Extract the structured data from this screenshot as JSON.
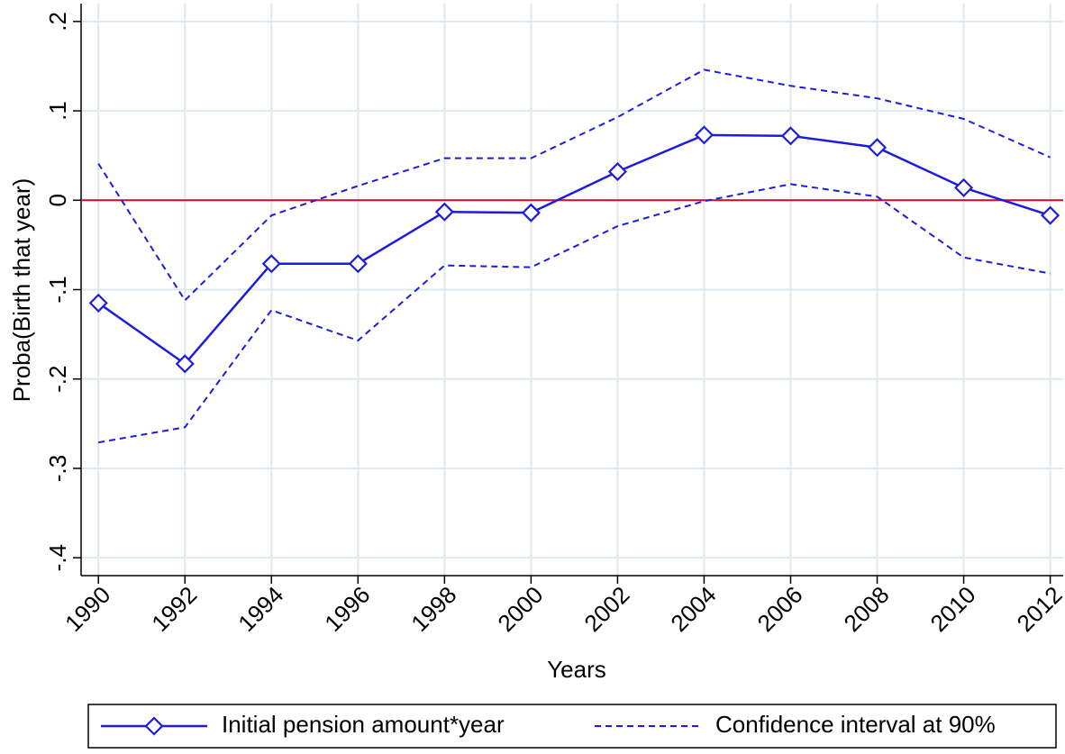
{
  "chart_data": {
    "type": "line",
    "x_label": "Years",
    "y_label": "Proba(Birth that year)",
    "x": [
      1990,
      1992,
      1994,
      1996,
      1998,
      2000,
      2002,
      2004,
      2006,
      2008,
      2010,
      2012
    ],
    "series": [
      {
        "name": "Initial pension amount*year",
        "color": "#1c1ce0",
        "marker": "diamond",
        "dashed": false,
        "values": [
          -0.115,
          -0.183,
          -0.071,
          -0.071,
          -0.013,
          -0.014,
          0.032,
          0.073,
          0.072,
          0.059,
          0.014,
          -0.017
        ]
      },
      {
        "name": "Confidence interval at 90%",
        "color": "#1c1ce0",
        "marker": "none",
        "dashed": true,
        "values": [
          0.041,
          -0.112,
          -0.017,
          0.016,
          0.047,
          0.047,
          0.093,
          0.146,
          0.128,
          0.114,
          0.091,
          0.048
        ],
        "lower": [
          -0.271,
          -0.254,
          -0.123,
          -0.157,
          -0.073,
          -0.075,
          -0.029,
          -0.001,
          0.018,
          0.004,
          -0.064,
          -0.082
        ]
      }
    ],
    "reference_line": {
      "value": 0,
      "color": "#c8102e"
    },
    "xlim": [
      1989.6,
      2012.3
    ],
    "xticks": [
      1990,
      1992,
      1994,
      1996,
      1998,
      2000,
      2002,
      2004,
      2006,
      2008,
      2010,
      2012
    ],
    "ylim": [
      -0.42,
      0.22
    ],
    "yticks": [
      {
        "value": -0.4,
        "label": "-.4"
      },
      {
        "value": -0.3,
        "label": "-.3"
      },
      {
        "value": -0.2,
        "label": "-.2"
      },
      {
        "value": -0.1,
        "label": "-.1"
      },
      0,
      {
        "value": 0.1,
        "label": ".1"
      },
      {
        "value": 0.2,
        "label": ".2"
      }
    ],
    "grid": true,
    "legend": "bottom"
  }
}
